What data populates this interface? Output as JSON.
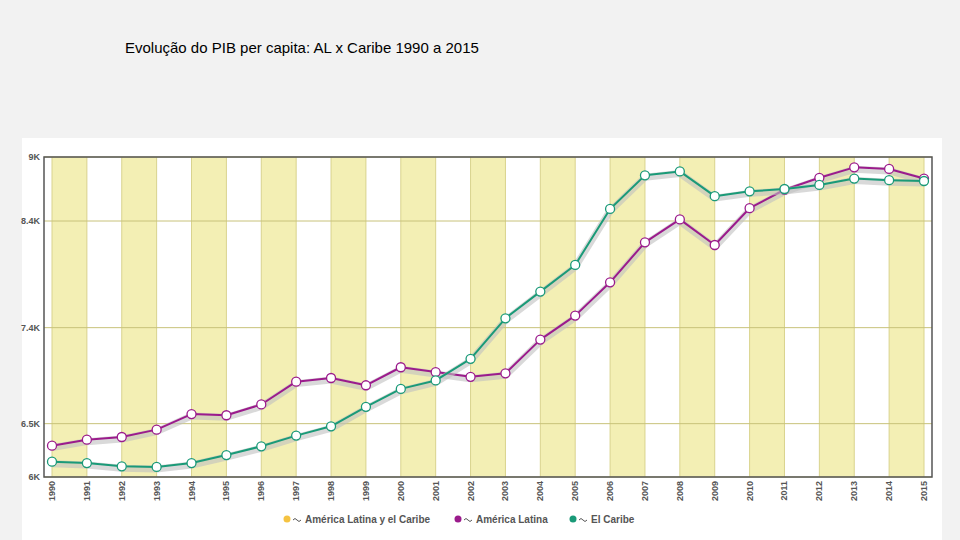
{
  "chart_data": {
    "type": "line",
    "title": "Evolução do PIB per capita: AL x Caribe 1990 a 2015",
    "categories": [
      "1990",
      "1991",
      "1992",
      "1993",
      "1994",
      "1995",
      "1996",
      "1997",
      "1998",
      "1999",
      "2000",
      "2001",
      "2002",
      "2003",
      "2004",
      "2005",
      "2006",
      "2007",
      "2008",
      "2009",
      "2010",
      "2011",
      "2012",
      "2013",
      "2014",
      "2015"
    ],
    "series": [
      {
        "name": "América Latina y el Caribe",
        "color": "#f5c342",
        "values": [
          null,
          null,
          null,
          null,
          null,
          null,
          null,
          null,
          null,
          null,
          null,
          null,
          null,
          null,
          null,
          null,
          null,
          null,
          null,
          null,
          null,
          null,
          null,
          null,
          null,
          null
        ]
      },
      {
        "name": "América Latina",
        "color": "#9b1b8c",
        "values": [
          6294,
          6350,
          6375,
          6444,
          6590,
          6579,
          6680,
          6894,
          6928,
          6860,
          7029,
          6984,
          6939,
          6972,
          7288,
          7513,
          7825,
          8200,
          8415,
          8175,
          8520,
          8693,
          8805,
          8903,
          8888,
          8798
        ]
      },
      {
        "name": "El Caribe",
        "color": "#1a9a78",
        "values": [
          6144,
          6131,
          6100,
          6094,
          6131,
          6206,
          6288,
          6388,
          6475,
          6658,
          6826,
          6905,
          7108,
          7488,
          7738,
          7988,
          8513,
          8828,
          8865,
          8633,
          8678,
          8700,
          8738,
          8798,
          8783,
          8775
        ]
      }
    ],
    "ylim": [
      6000,
      9000
    ],
    "yticks": [
      {
        "value": 6000,
        "label": "6K"
      },
      {
        "value": 6500,
        "label": "6.5K"
      },
      {
        "value": 7400,
        "label": "7.4K"
      },
      {
        "value": 8400,
        "label": "8.4K"
      },
      {
        "value": 9000,
        "label": "9K"
      }
    ],
    "grid": true,
    "legend": "bottom",
    "marker": "circle"
  }
}
